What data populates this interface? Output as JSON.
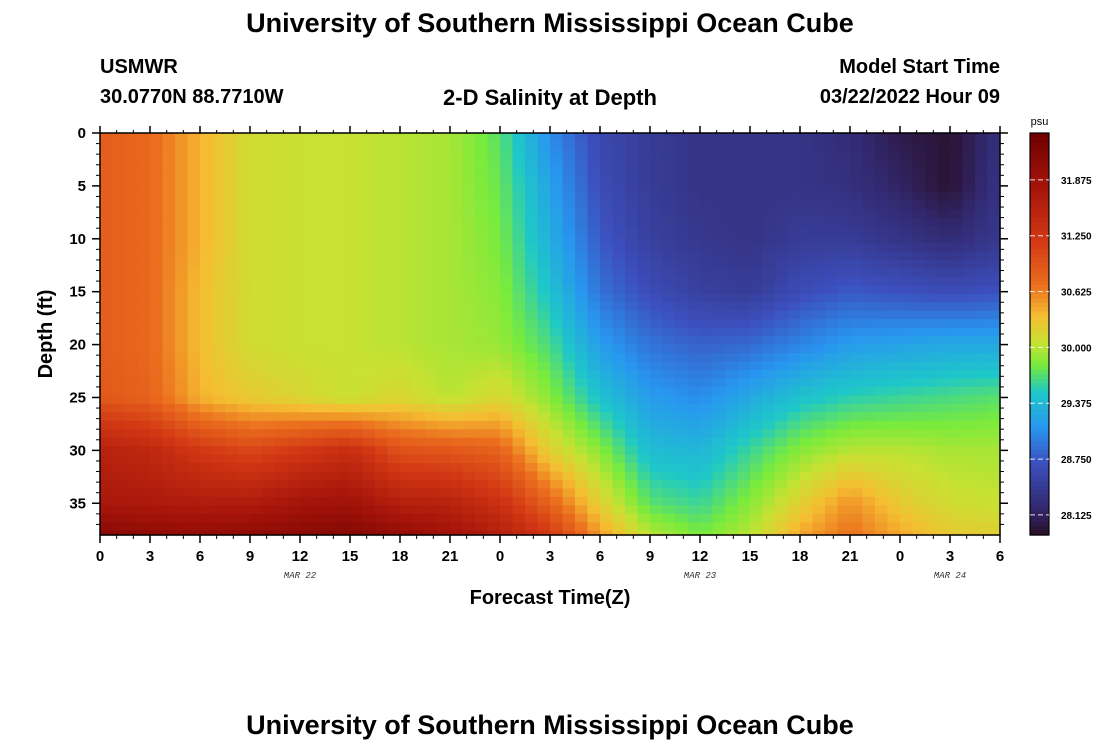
{
  "page": {
    "title": "University of Southern Mississippi Ocean Cube",
    "footer_title": "University of Southern Mississippi Ocean Cube",
    "station": "USMWR",
    "coordinates": "30.0770N  88.7710W",
    "plot_title": "2-D Salinity at Depth",
    "model_label": "Model Start Time",
    "model_time": "03/22/2022 Hour 09"
  },
  "chart_data": {
    "type": "heatmap",
    "title": "2-D Salinity at Depth",
    "xlabel": "Forecast Time(Z)",
    "ylabel": "Depth (ft)",
    "x_range_hours": [
      0,
      54
    ],
    "y_range_ft": [
      0,
      38
    ],
    "y_inverted": true,
    "x_tick_labels": [
      "0",
      "3",
      "6",
      "9",
      "12",
      "15",
      "18",
      "21",
      "0",
      "3",
      "6",
      "9",
      "12",
      "15",
      "18",
      "21",
      "0",
      "3",
      "6"
    ],
    "y_tick_labels": [
      "0",
      "5",
      "10",
      "15",
      "20",
      "25",
      "30",
      "35"
    ],
    "date_labels": [
      {
        "text": "MAR 22",
        "hour": 12
      },
      {
        "text": "MAR 23",
        "hour": 36
      },
      {
        "text": "MAR 24",
        "hour": 51
      }
    ],
    "colorbar": {
      "unit": "psu",
      "min": 27.9,
      "max": 32.4,
      "tick_labels": [
        "31.875",
        "31.250",
        "30.625",
        "30.000",
        "29.375",
        "28.750",
        "28.125"
      ],
      "tick_values": [
        31.875,
        31.25,
        30.625,
        30.0,
        29.375,
        28.75,
        28.125
      ]
    },
    "depths_ft": [
      0,
      5,
      10,
      15,
      20,
      25,
      30,
      35,
      38
    ],
    "times_hr": [
      0,
      3,
      6,
      9,
      12,
      15,
      18,
      21,
      24,
      27,
      30,
      33,
      36,
      39,
      42,
      45,
      48,
      51,
      54
    ],
    "salinity_psu": [
      [
        30.85,
        30.75,
        30.4,
        30.1,
        30.05,
        30.05,
        30.0,
        29.95,
        29.7,
        29.05,
        28.6,
        28.45,
        28.35,
        28.35,
        28.35,
        28.25,
        28.05,
        27.95,
        28.3
      ],
      [
        30.85,
        30.75,
        30.4,
        30.1,
        30.05,
        30.05,
        30.0,
        29.95,
        29.75,
        29.2,
        28.65,
        28.45,
        28.35,
        28.35,
        28.35,
        28.3,
        28.15,
        27.95,
        28.35
      ],
      [
        30.85,
        30.75,
        30.4,
        30.1,
        30.05,
        30.05,
        30.0,
        29.95,
        29.8,
        29.3,
        28.75,
        28.5,
        28.4,
        28.35,
        28.45,
        28.45,
        28.35,
        28.25,
        28.4
      ],
      [
        30.85,
        30.75,
        30.35,
        30.1,
        30.05,
        30.05,
        30.0,
        29.95,
        29.85,
        29.45,
        28.9,
        28.65,
        28.5,
        28.45,
        28.65,
        28.75,
        28.7,
        28.65,
        28.7
      ],
      [
        30.85,
        30.75,
        30.35,
        30.1,
        30.05,
        30.05,
        30.0,
        29.95,
        29.9,
        29.65,
        29.15,
        28.9,
        28.8,
        28.85,
        29.0,
        29.15,
        29.2,
        29.25,
        29.25
      ],
      [
        30.9,
        30.8,
        30.4,
        30.25,
        30.15,
        30.05,
        30.15,
        30.0,
        30.15,
        29.85,
        29.45,
        29.15,
        29.05,
        29.25,
        29.45,
        29.55,
        29.6,
        29.65,
        29.7
      ],
      [
        31.55,
        31.45,
        31.2,
        31.05,
        31.2,
        31.35,
        30.95,
        30.9,
        30.8,
        30.2,
        29.85,
        29.4,
        29.35,
        29.6,
        29.85,
        30.0,
        30.0,
        29.95,
        29.95
      ],
      [
        31.75,
        31.7,
        31.65,
        31.65,
        31.8,
        31.85,
        31.6,
        31.55,
        31.3,
        30.8,
        30.2,
        29.7,
        29.6,
        29.85,
        30.2,
        30.55,
        30.25,
        30.1,
        30.05
      ],
      [
        32.1,
        32.05,
        32.0,
        32.05,
        32.1,
        32.15,
        32.0,
        31.85,
        31.6,
        31.2,
        30.5,
        30.0,
        29.8,
        30.0,
        30.45,
        30.7,
        30.45,
        30.25,
        30.2
      ]
    ]
  }
}
